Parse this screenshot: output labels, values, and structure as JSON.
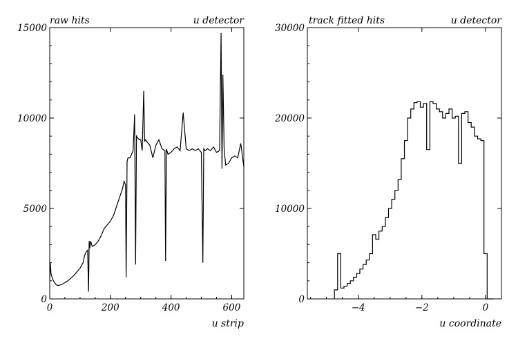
{
  "chart_data": [
    {
      "type": "line",
      "title_left": "raw hits",
      "title_right": "u detector",
      "xlabel": "u strip",
      "ylabel": "",
      "xlim": [
        0,
        640
      ],
      "ylim": [
        0,
        15000
      ],
      "x_ticks": [
        0,
        200,
        400,
        600
      ],
      "y_ticks": [
        0,
        5000,
        10000,
        15000
      ],
      "x_tick_labels": [
        "0",
        "200",
        "400",
        "600"
      ],
      "y_tick_labels": [
        "0",
        "5000",
        "10000",
        "15000"
      ],
      "grid": false,
      "legend": "none",
      "series": [
        {
          "x": [
            0,
            2,
            4,
            8,
            12,
            16,
            20,
            25,
            30,
            40,
            50,
            60,
            70,
            80,
            90,
            100,
            110,
            115,
            120,
            125,
            128,
            130,
            132,
            135,
            140,
            150,
            160,
            170,
            180,
            190,
            200,
            210,
            220,
            230,
            240,
            245,
            250,
            252,
            255,
            258,
            260,
            265,
            270,
            275,
            280,
            283,
            286,
            290,
            295,
            300,
            305,
            310,
            313,
            316,
            320,
            330,
            340,
            350,
            360,
            370,
            380,
            382,
            385,
            390,
            400,
            410,
            420,
            430,
            440,
            450,
            460,
            470,
            480,
            490,
            500,
            505,
            508,
            512,
            520,
            530,
            540,
            550,
            560,
            565,
            568,
            571,
            575,
            580,
            590,
            600,
            610,
            620,
            630,
            640
          ],
          "y": [
            1100,
            2000,
            1400,
            1200,
            1000,
            900,
            800,
            750,
            750,
            800,
            900,
            1000,
            1150,
            1300,
            1500,
            1700,
            2000,
            2400,
            2600,
            2700,
            400,
            3200,
            2800,
            3200,
            2900,
            3000,
            3200,
            3500,
            3900,
            4100,
            4300,
            4600,
            5100,
            5600,
            6100,
            6500,
            6300,
            1200,
            7600,
            7800,
            7800,
            7800,
            8000,
            8200,
            10200,
            1900,
            9000,
            8900,
            8800,
            8800,
            8200,
            11500,
            8700,
            8800,
            8700,
            8500,
            7800,
            8500,
            8800,
            8300,
            8200,
            2100,
            8300,
            8000,
            8100,
            8300,
            8400,
            8200,
            10300,
            8300,
            8200,
            8300,
            8200,
            8300,
            8100,
            2000,
            8300,
            8200,
            8300,
            8200,
            8400,
            8100,
            8200,
            14700,
            7200,
            12400,
            8300,
            7400,
            7500,
            7800,
            7900,
            7800,
            8600,
            7300
          ]
        }
      ]
    },
    {
      "type": "line",
      "title_left": "track fitted hits",
      "title_right": "u detector",
      "xlabel": "u coordinate",
      "ylabel": "",
      "xlim": [
        -5.6,
        0.5
      ],
      "ylim": [
        0,
        30000
      ],
      "x_ticks": [
        -4,
        -2,
        0
      ],
      "y_ticks": [
        0,
        10000,
        20000,
        30000
      ],
      "x_tick_labels": [
        "−4",
        "−2",
        "0"
      ],
      "y_tick_labels": [
        "0",
        "10000",
        "20000",
        "30000"
      ],
      "grid": false,
      "legend": "none",
      "series": [
        {
          "step": true,
          "x": [
            -4.7,
            -4.6,
            -4.5,
            -4.4,
            -4.3,
            -4.2,
            -4.1,
            -4.0,
            -3.9,
            -3.8,
            -3.7,
            -3.6,
            -3.5,
            -3.4,
            -3.3,
            -3.2,
            -3.1,
            -3.0,
            -2.9,
            -2.8,
            -2.7,
            -2.6,
            -2.5,
            -2.4,
            -2.3,
            -2.2,
            -2.1,
            -2.0,
            -1.9,
            -1.8,
            -1.7,
            -1.6,
            -1.5,
            -1.4,
            -1.3,
            -1.2,
            -1.1,
            -1.0,
            -0.9,
            -0.8,
            -0.7,
            -0.6,
            -0.5,
            -0.4,
            -0.3,
            -0.2,
            -0.1,
            0.0,
            0.1,
            0.2
          ],
          "y": [
            1000,
            5000,
            1200,
            1400,
            1700,
            2000,
            2400,
            2800,
            3300,
            3800,
            4300,
            5000,
            7100,
            6600,
            7500,
            8000,
            9000,
            10000,
            11000,
            12000,
            13200,
            15500,
            17500,
            20000,
            21000,
            21700,
            21800,
            21200,
            21600,
            16500,
            21800,
            21600,
            21000,
            20700,
            20000,
            20500,
            21000,
            20000,
            20200,
            15000,
            20500,
            20700,
            19500,
            19000,
            18000,
            17700,
            17500,
            5000,
            0,
            0
          ]
        }
      ]
    }
  ]
}
